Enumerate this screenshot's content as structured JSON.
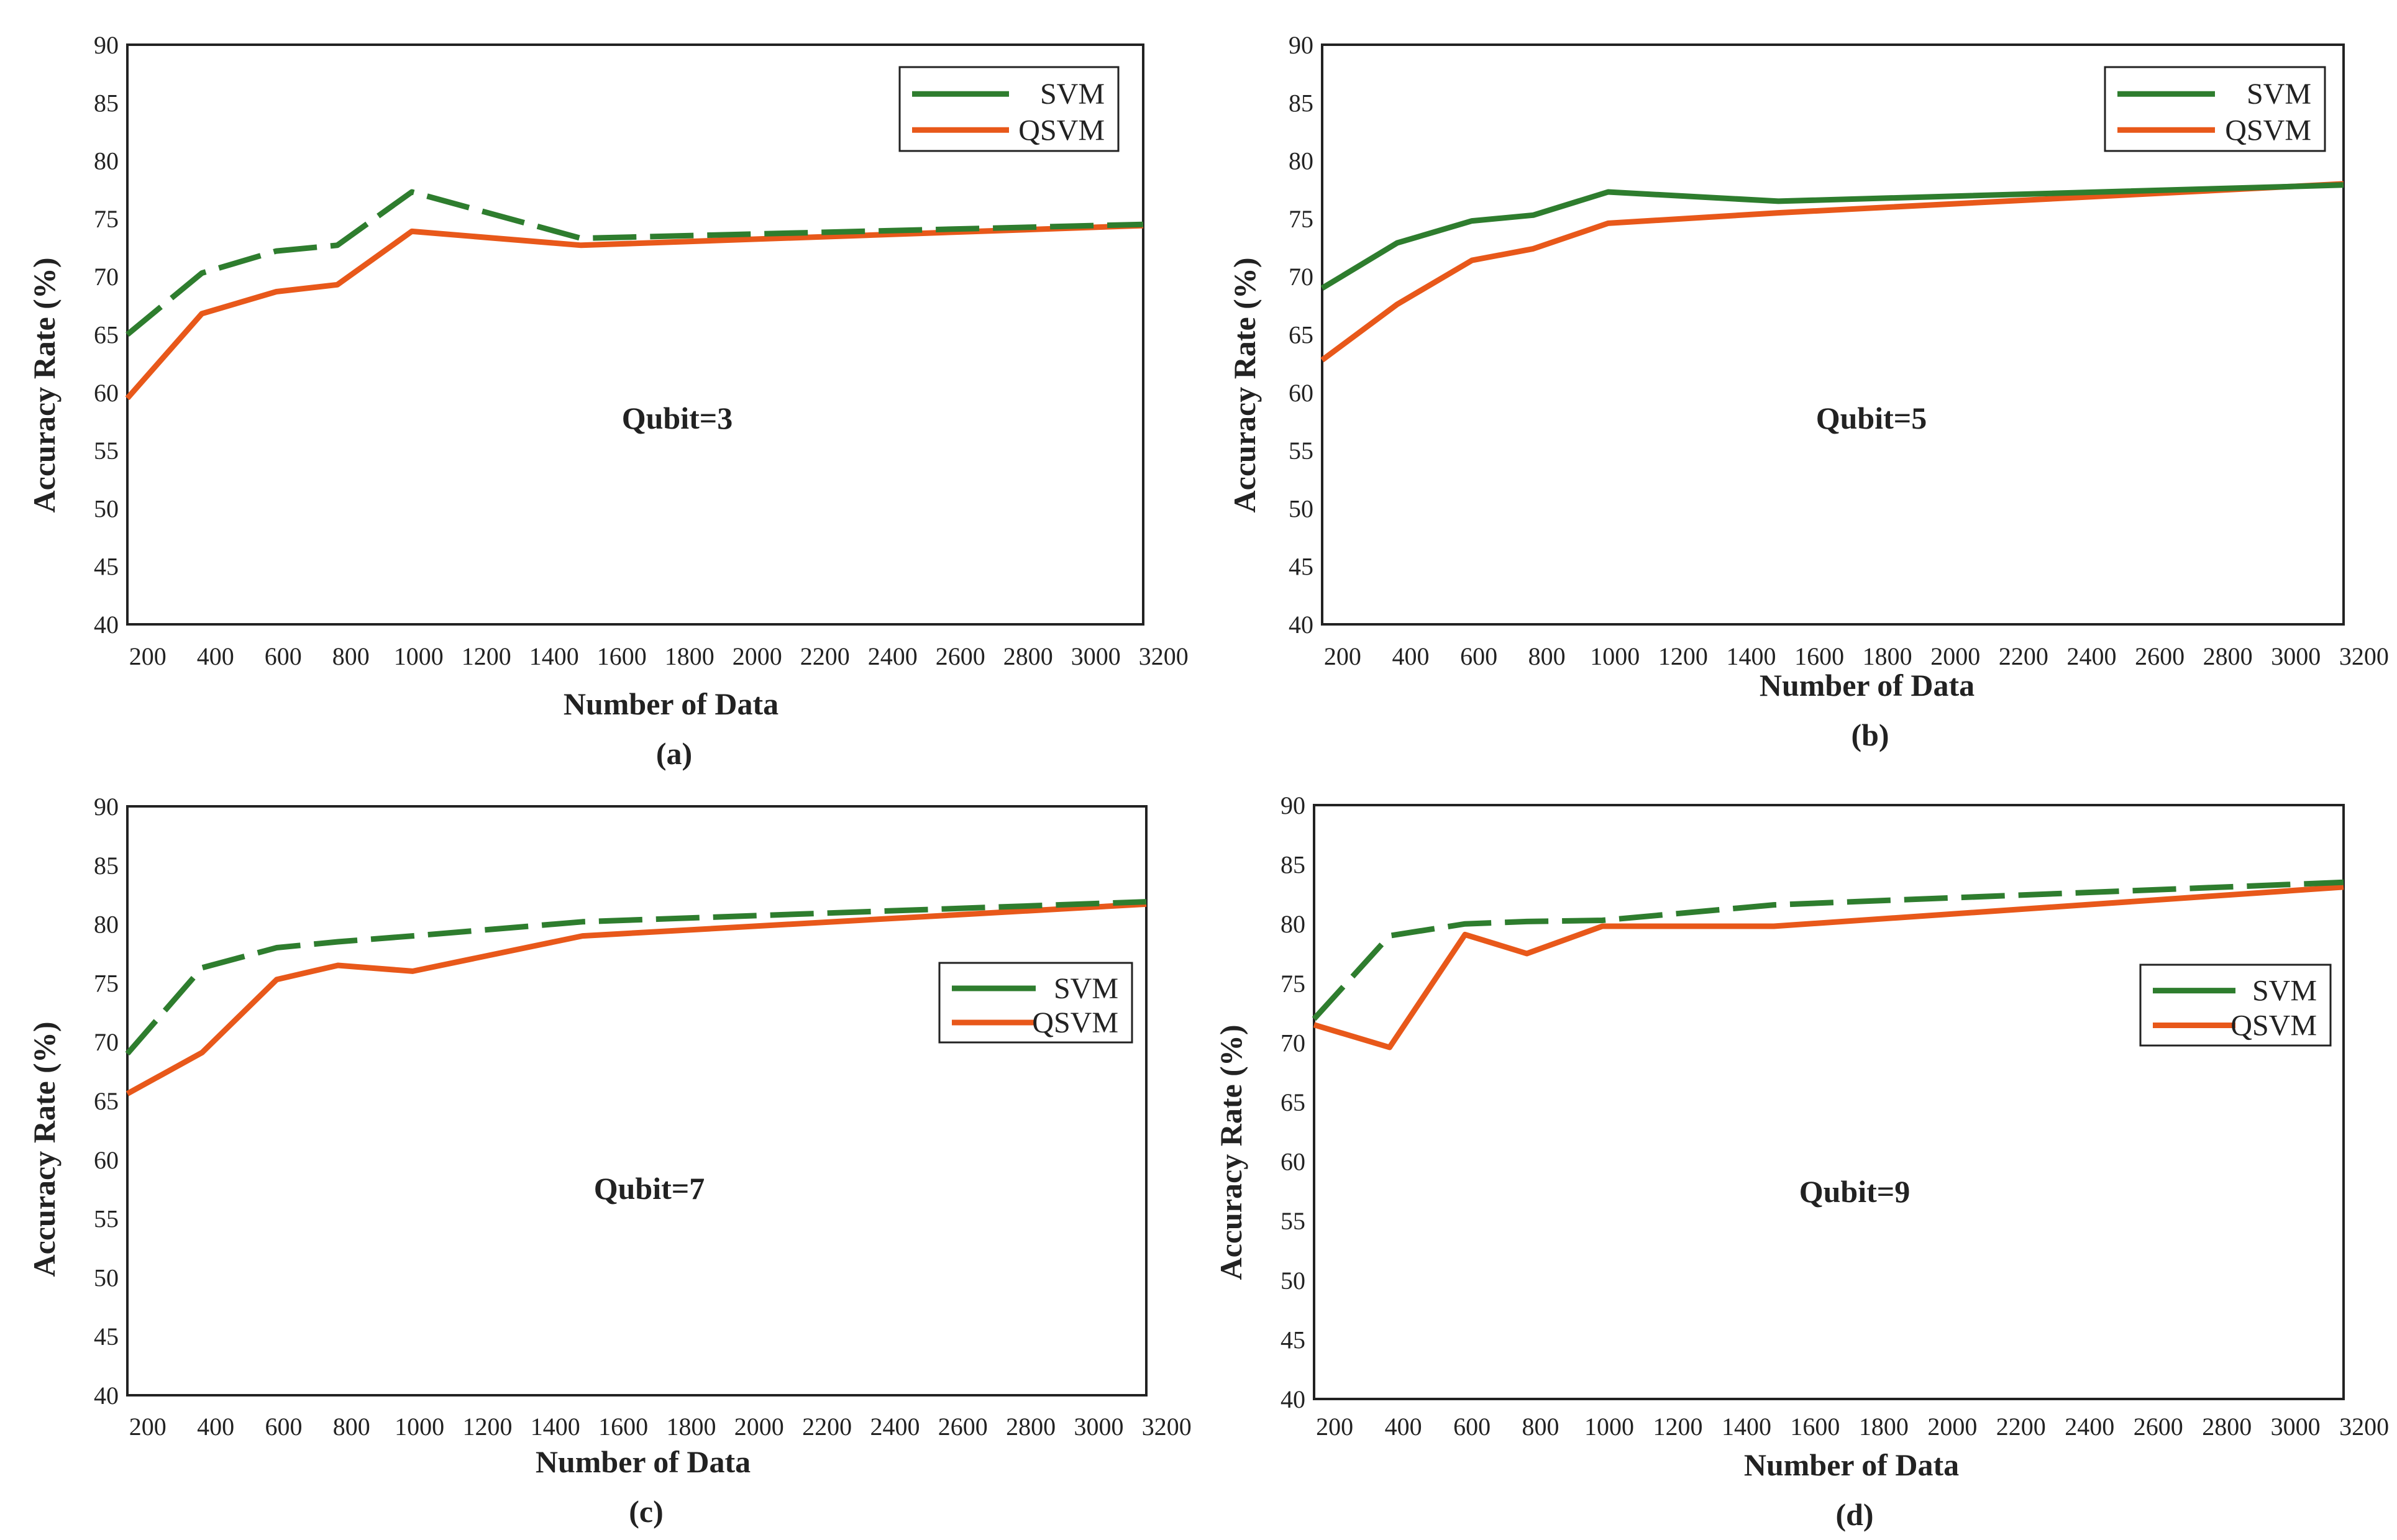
{
  "colors": {
    "svm": "#2e7d2e",
    "qsvm": "#e8581a",
    "frame": "#222222"
  },
  "chart_data": [
    {
      "type": "line",
      "panel": "(a)",
      "annotation": "Qubit=3",
      "xlabel": "Number of Data",
      "ylabel": "Accuracy Rate (%)",
      "xlim": [
        140,
        3140
      ],
      "ylim": [
        40,
        90
      ],
      "xticks": [
        200,
        400,
        600,
        800,
        1000,
        1200,
        1400,
        1600,
        1800,
        2000,
        2200,
        2400,
        2600,
        2800,
        3000,
        3200
      ],
      "yticks": [
        40,
        45,
        50,
        55,
        60,
        65,
        70,
        75,
        80,
        85,
        90
      ],
      "legend_position": "top-right",
      "series": [
        {
          "name": "SVM",
          "style": "dashed",
          "x": [
            140,
            360,
            580,
            760,
            980,
            1480,
            3140
          ],
          "y": [
            65.0,
            70.3,
            72.2,
            72.7,
            77.3,
            73.3,
            74.5
          ]
        },
        {
          "name": "QSVM",
          "style": "solid",
          "x": [
            140,
            360,
            580,
            760,
            980,
            1480,
            3140
          ],
          "y": [
            59.5,
            66.8,
            68.7,
            69.3,
            73.9,
            72.7,
            74.4
          ]
        }
      ]
    },
    {
      "type": "line",
      "panel": "(b)",
      "annotation": "Qubit=5",
      "xlabel": "Number of Data",
      "ylabel": "Accuracy Rate (%)",
      "xlim": [
        140,
        3140
      ],
      "ylim": [
        40,
        90
      ],
      "xticks": [
        200,
        400,
        600,
        800,
        1000,
        1200,
        1400,
        1600,
        1800,
        2000,
        2200,
        2400,
        2600,
        2800,
        3000,
        3200
      ],
      "yticks": [
        40,
        45,
        50,
        55,
        60,
        65,
        70,
        75,
        80,
        85,
        90
      ],
      "legend_position": "top-right",
      "series": [
        {
          "name": "SVM",
          "style": "solid",
          "x": [
            140,
            360,
            580,
            760,
            980,
            1480,
            3140
          ],
          "y": [
            69.0,
            72.9,
            74.8,
            75.3,
            77.3,
            76.5,
            77.9
          ]
        },
        {
          "name": "QSVM",
          "style": "solid",
          "x": [
            140,
            360,
            580,
            760,
            980,
            1480,
            3140
          ],
          "y": [
            62.8,
            67.6,
            71.4,
            72.4,
            74.6,
            75.5,
            78.0
          ]
        }
      ]
    },
    {
      "type": "line",
      "panel": "(c)",
      "annotation": "Qubit=7",
      "xlabel": "Number of Data",
      "ylabel": "Accuracy Rate (%)",
      "xlim": [
        140,
        3140
      ],
      "ylim": [
        40,
        90
      ],
      "xticks": [
        200,
        400,
        600,
        800,
        1000,
        1200,
        1400,
        1600,
        1800,
        2000,
        2200,
        2400,
        2600,
        2800,
        3000,
        3200
      ],
      "yticks": [
        40,
        45,
        50,
        55,
        60,
        65,
        70,
        75,
        80,
        85,
        90
      ],
      "legend_position": "middle-right",
      "series": [
        {
          "name": "SVM",
          "style": "dashed",
          "x": [
            140,
            360,
            580,
            760,
            980,
            1480,
            3140
          ],
          "y": [
            69.0,
            76.3,
            78.0,
            78.5,
            79.0,
            80.2,
            81.9
          ]
        },
        {
          "name": "QSVM",
          "style": "solid",
          "x": [
            140,
            360,
            580,
            760,
            980,
            1480,
            3140
          ],
          "y": [
            65.6,
            69.1,
            75.3,
            76.5,
            76.0,
            79.0,
            81.7
          ]
        }
      ]
    },
    {
      "type": "line",
      "panel": "(d)",
      "annotation": "Qubit=9",
      "xlabel": "Number of Data",
      "ylabel": "Accuracy Rate (%)",
      "xlim": [
        140,
        3140
      ],
      "ylim": [
        40,
        90
      ],
      "xticks": [
        200,
        400,
        600,
        800,
        1000,
        1200,
        1400,
        1600,
        1800,
        2000,
        2200,
        2400,
        2600,
        2800,
        3000,
        3200
      ],
      "yticks": [
        40,
        45,
        50,
        55,
        60,
        65,
        70,
        75,
        80,
        85,
        90
      ],
      "legend_position": "middle-right",
      "series": [
        {
          "name": "SVM",
          "style": "dashed",
          "x": [
            140,
            360,
            580,
            760,
            980,
            1480,
            3140
          ],
          "y": [
            72.0,
            79.0,
            80.0,
            80.2,
            80.3,
            81.6,
            83.5
          ]
        },
        {
          "name": "QSVM",
          "style": "solid",
          "x": [
            140,
            360,
            580,
            760,
            980,
            1480,
            3140
          ],
          "y": [
            71.5,
            69.6,
            79.1,
            77.5,
            79.8,
            79.8,
            83.1
          ]
        }
      ]
    }
  ]
}
